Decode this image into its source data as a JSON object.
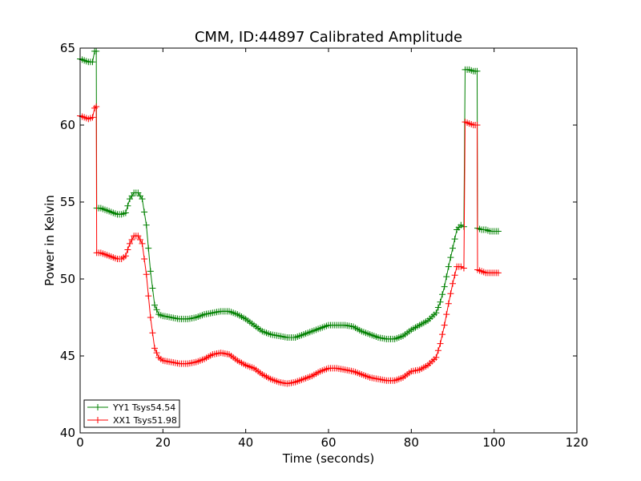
{
  "chart_data": {
    "type": "line",
    "title": "CMM, ID:44897 Calibrated Amplitude",
    "xlabel": "Time (seconds)",
    "ylabel": "Power in Kelvin",
    "xlim": [
      0,
      120
    ],
    "ylim": [
      40,
      65
    ],
    "xticks": [
      "0",
      "20",
      "40",
      "60",
      "80",
      "100",
      "120"
    ],
    "yticks": [
      "40",
      "45",
      "50",
      "55",
      "60",
      "65"
    ],
    "grid": false,
    "legend": "lower-left",
    "series": [
      {
        "name": "YY1 Tsys54.54",
        "color": "#008000",
        "marker": "plus",
        "points": [
          [
            0.0,
            64.3
          ],
          [
            1.0,
            64.2
          ],
          [
            2.0,
            64.1
          ],
          [
            3.0,
            64.1
          ],
          [
            3.5,
            64.8
          ],
          [
            3.9,
            64.8
          ],
          [
            4.0,
            54.6
          ],
          [
            5.0,
            54.6
          ],
          [
            6.0,
            54.5
          ],
          [
            7.0,
            54.4
          ],
          [
            8.0,
            54.3
          ],
          [
            9.0,
            54.2
          ],
          [
            10.0,
            54.2
          ],
          [
            11.0,
            54.3
          ],
          [
            12.0,
            55.2
          ],
          [
            13.0,
            55.6
          ],
          [
            14.0,
            55.6
          ],
          [
            15.0,
            55.2
          ],
          [
            16.0,
            53.5
          ],
          [
            17.0,
            50.5
          ],
          [
            18.0,
            48.3
          ],
          [
            19.0,
            47.7
          ],
          [
            20.0,
            47.6
          ],
          [
            22.0,
            47.5
          ],
          [
            24.0,
            47.4
          ],
          [
            26.0,
            47.4
          ],
          [
            28.0,
            47.5
          ],
          [
            30.0,
            47.7
          ],
          [
            32.0,
            47.8
          ],
          [
            34.0,
            47.9
          ],
          [
            36.0,
            47.9
          ],
          [
            38.0,
            47.7
          ],
          [
            40.0,
            47.4
          ],
          [
            42.0,
            47.0
          ],
          [
            44.0,
            46.6
          ],
          [
            46.0,
            46.4
          ],
          [
            48.0,
            46.3
          ],
          [
            50.0,
            46.2
          ],
          [
            52.0,
            46.2
          ],
          [
            54.0,
            46.4
          ],
          [
            56.0,
            46.6
          ],
          [
            58.0,
            46.8
          ],
          [
            60.0,
            47.0
          ],
          [
            62.0,
            47.0
          ],
          [
            64.0,
            47.0
          ],
          [
            66.0,
            46.9
          ],
          [
            68.0,
            46.6
          ],
          [
            70.0,
            46.4
          ],
          [
            72.0,
            46.2
          ],
          [
            74.0,
            46.1
          ],
          [
            76.0,
            46.1
          ],
          [
            78.0,
            46.3
          ],
          [
            80.0,
            46.7
          ],
          [
            82.0,
            47.0
          ],
          [
            84.0,
            47.3
          ],
          [
            86.0,
            47.8
          ],
          [
            87.0,
            48.5
          ],
          [
            88.0,
            49.5
          ],
          [
            89.0,
            50.8
          ],
          [
            90.0,
            52.0
          ],
          [
            91.0,
            53.2
          ],
          [
            92.0,
            53.5
          ],
          [
            92.7,
            53.4
          ],
          [
            93.0,
            63.6
          ],
          [
            94.0,
            63.6
          ],
          [
            95.0,
            63.5
          ],
          [
            95.9,
            63.5
          ],
          [
            96.0,
            53.3
          ],
          [
            97.0,
            53.2
          ],
          [
            98.0,
            53.2
          ],
          [
            99.0,
            53.1
          ],
          [
            100.0,
            53.1
          ],
          [
            101.0,
            53.1
          ]
        ]
      },
      {
        "name": "XX1 Tsys51.98",
        "color": "#ff0000",
        "marker": "plus",
        "points": [
          [
            0.0,
            60.6
          ],
          [
            1.0,
            60.5
          ],
          [
            2.0,
            60.4
          ],
          [
            3.0,
            60.5
          ],
          [
            3.5,
            61.1
          ],
          [
            3.9,
            61.2
          ],
          [
            4.0,
            51.7
          ],
          [
            5.0,
            51.7
          ],
          [
            6.0,
            51.6
          ],
          [
            7.0,
            51.5
          ],
          [
            8.0,
            51.4
          ],
          [
            9.0,
            51.3
          ],
          [
            10.0,
            51.3
          ],
          [
            11.0,
            51.5
          ],
          [
            12.0,
            52.3
          ],
          [
            13.0,
            52.8
          ],
          [
            14.0,
            52.8
          ],
          [
            15.0,
            52.3
          ],
          [
            16.0,
            50.3
          ],
          [
            17.0,
            47.5
          ],
          [
            18.0,
            45.5
          ],
          [
            19.0,
            44.9
          ],
          [
            20.0,
            44.7
          ],
          [
            22.0,
            44.6
          ],
          [
            24.0,
            44.5
          ],
          [
            26.0,
            44.5
          ],
          [
            28.0,
            44.6
          ],
          [
            30.0,
            44.8
          ],
          [
            32.0,
            45.1
          ],
          [
            34.0,
            45.2
          ],
          [
            36.0,
            45.1
          ],
          [
            38.0,
            44.7
          ],
          [
            40.0,
            44.4
          ],
          [
            42.0,
            44.2
          ],
          [
            44.0,
            43.8
          ],
          [
            46.0,
            43.5
          ],
          [
            48.0,
            43.3
          ],
          [
            50.0,
            43.2
          ],
          [
            52.0,
            43.3
          ],
          [
            54.0,
            43.5
          ],
          [
            56.0,
            43.7
          ],
          [
            58.0,
            44.0
          ],
          [
            60.0,
            44.2
          ],
          [
            62.0,
            44.2
          ],
          [
            64.0,
            44.1
          ],
          [
            66.0,
            44.0
          ],
          [
            68.0,
            43.8
          ],
          [
            70.0,
            43.6
          ],
          [
            72.0,
            43.5
          ],
          [
            74.0,
            43.4
          ],
          [
            76.0,
            43.4
          ],
          [
            78.0,
            43.6
          ],
          [
            80.0,
            44.0
          ],
          [
            82.0,
            44.1
          ],
          [
            84.0,
            44.4
          ],
          [
            86.0,
            44.9
          ],
          [
            87.0,
            45.8
          ],
          [
            88.0,
            47.0
          ],
          [
            89.0,
            48.4
          ],
          [
            90.0,
            49.7
          ],
          [
            91.0,
            50.8
          ],
          [
            92.0,
            50.8
          ],
          [
            92.7,
            50.7
          ],
          [
            93.0,
            60.2
          ],
          [
            94.0,
            60.1
          ],
          [
            95.0,
            60.0
          ],
          [
            95.9,
            60.0
          ],
          [
            96.0,
            50.6
          ],
          [
            97.0,
            50.5
          ],
          [
            98.0,
            50.4
          ],
          [
            99.0,
            50.4
          ],
          [
            100.0,
            50.4
          ],
          [
            101.0,
            50.4
          ]
        ]
      }
    ]
  }
}
